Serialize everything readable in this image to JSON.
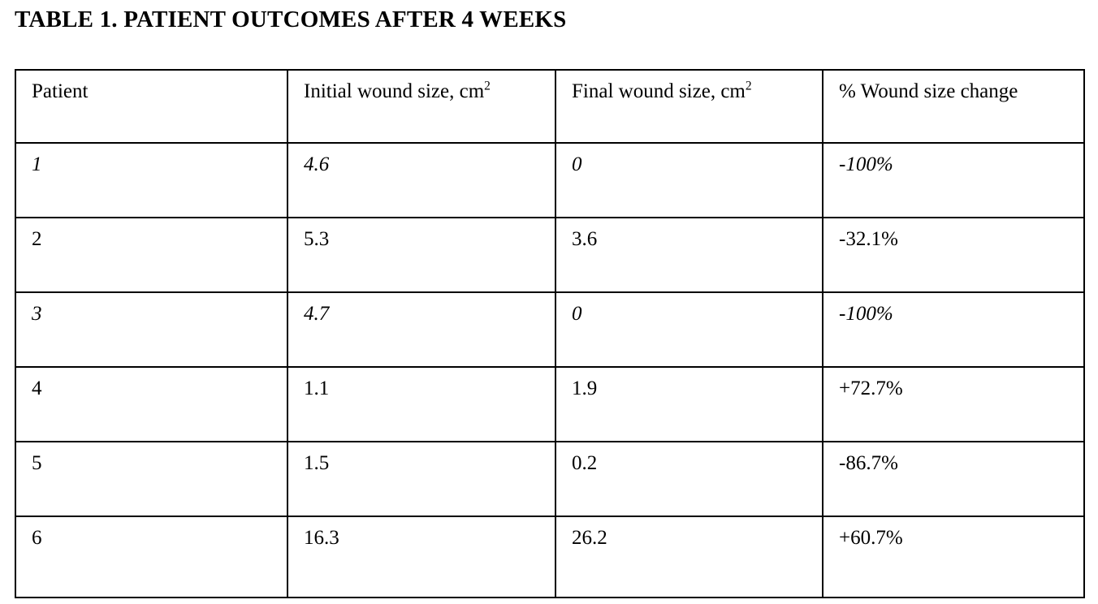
{
  "title": "TABLE 1. PATIENT OUTCOMES AFTER 4 WEEKS",
  "table": {
    "headers": [
      {
        "text": "Patient",
        "sup": ""
      },
      {
        "text": "Initial wound size, cm",
        "sup": "2"
      },
      {
        "text": "Final wound size, cm",
        "sup": "2"
      },
      {
        "text": "% Wound size change",
        "sup": ""
      }
    ],
    "rows": [
      {
        "italic": true,
        "cells": [
          "1",
          "4.6",
          "0",
          "-100%"
        ]
      },
      {
        "italic": false,
        "cells": [
          "2",
          "5.3",
          "3.6",
          "-32.1%"
        ]
      },
      {
        "italic": true,
        "cells": [
          "3",
          "4.7",
          "0",
          "-100%"
        ]
      },
      {
        "italic": false,
        "cells": [
          "4",
          "1.1",
          "1.9",
          "+72.7%"
        ]
      },
      {
        "italic": false,
        "cells": [
          "5",
          "1.5",
          "0.2",
          "-86.7%"
        ]
      },
      {
        "italic": false,
        "cells": [
          "6",
          "16.3",
          "26.2",
          "+60.7%"
        ]
      }
    ]
  },
  "colors": {
    "text": "#000000",
    "border": "#000000",
    "background": "#ffffff"
  }
}
